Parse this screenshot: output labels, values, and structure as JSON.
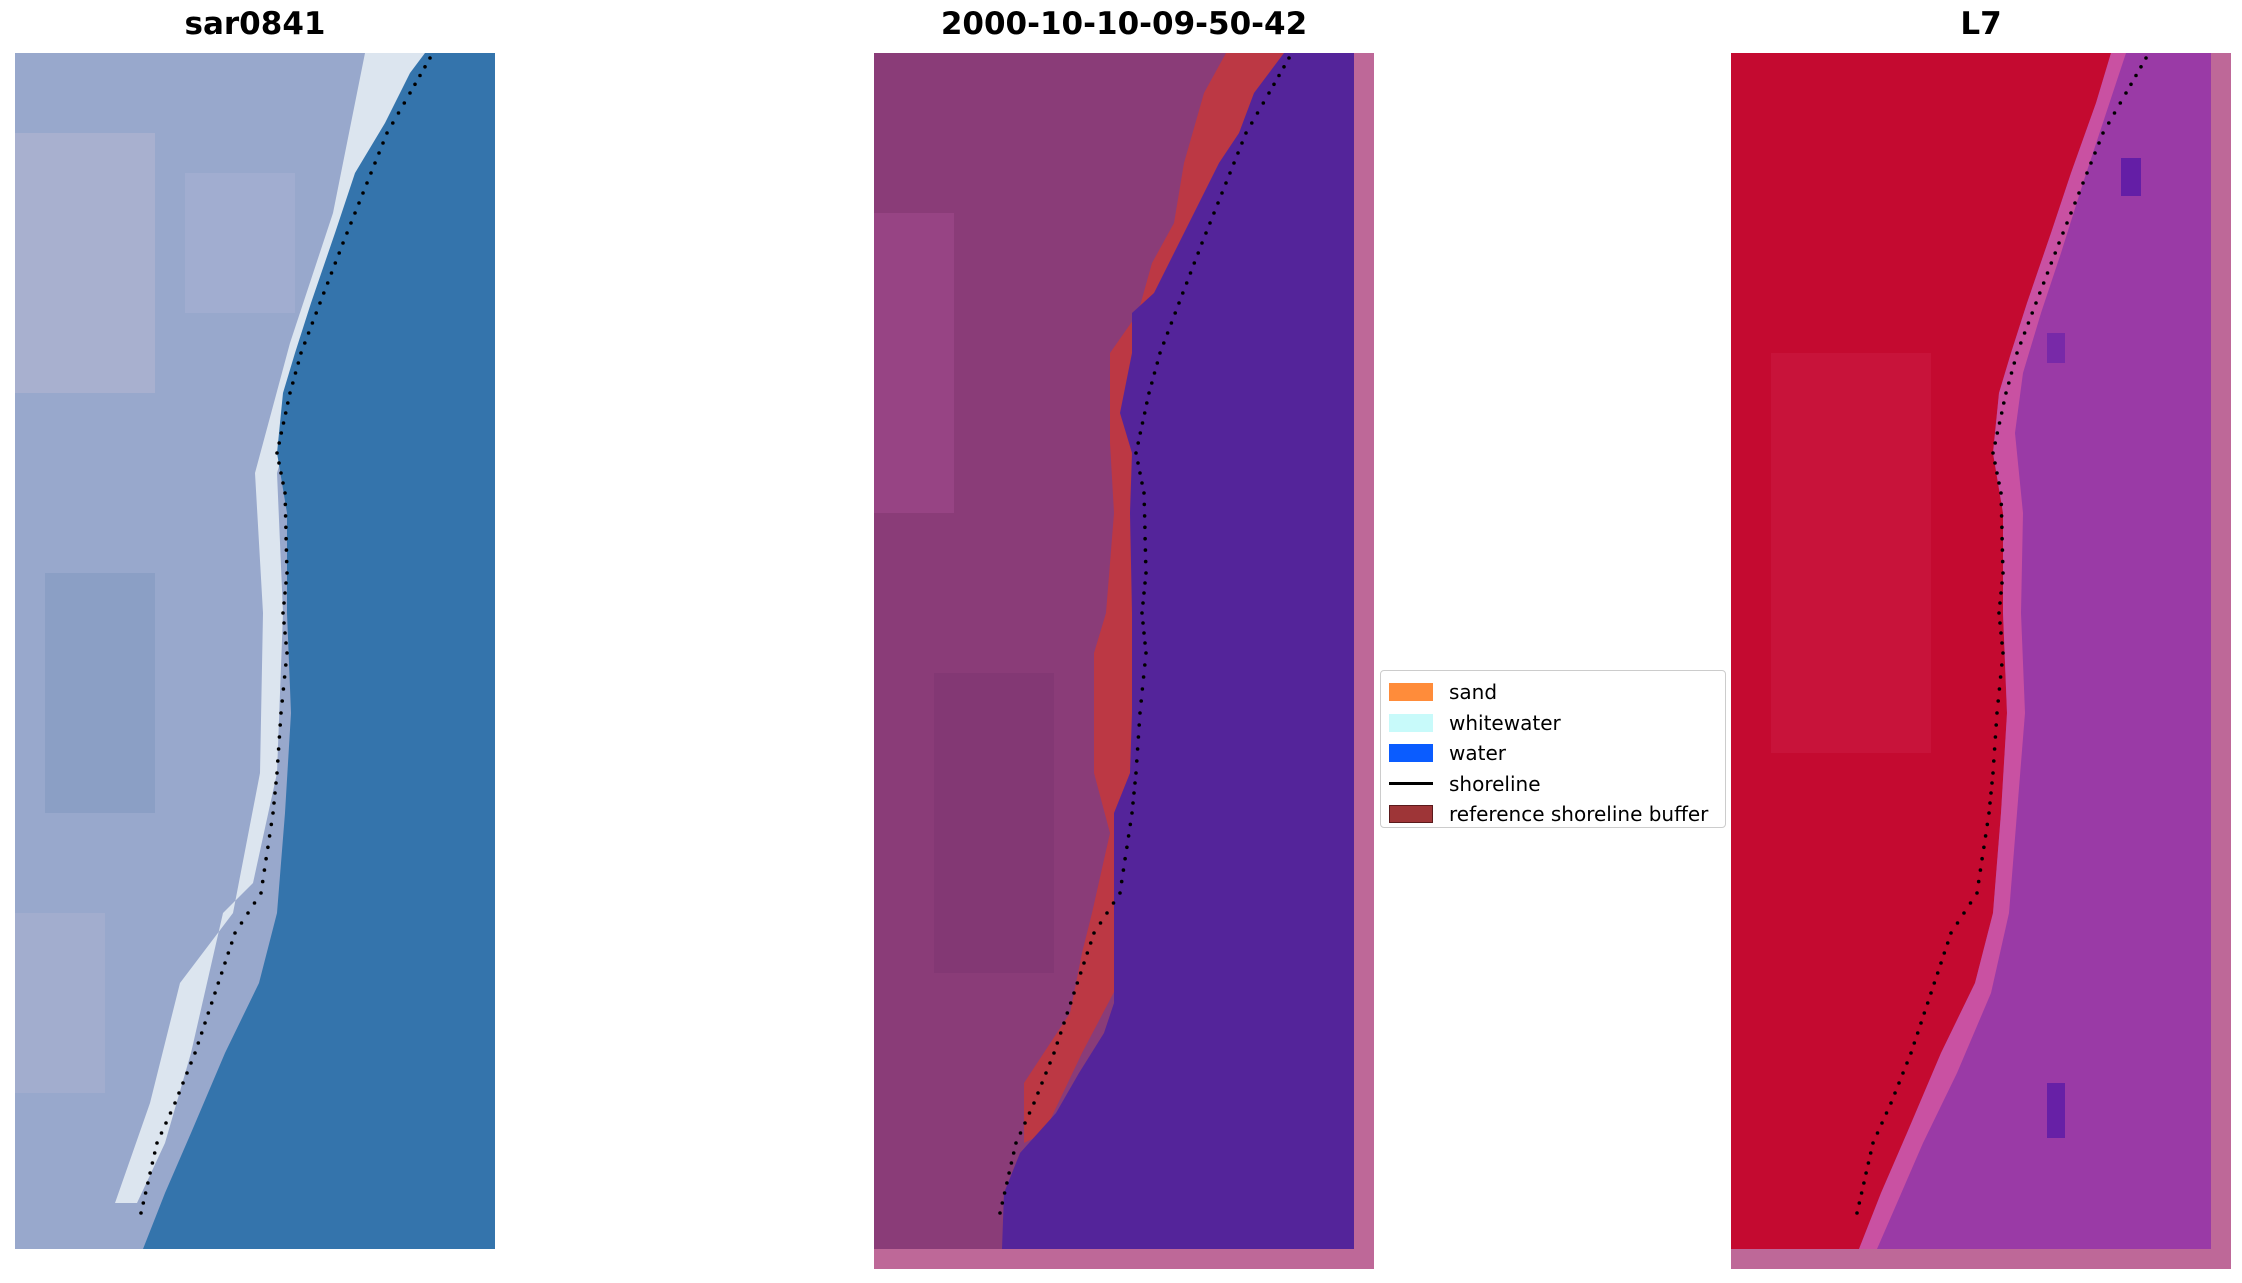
{
  "panels": {
    "rgb": {
      "title": "sar0841"
    },
    "classified": {
      "title": "2000-10-10-09-50-42"
    },
    "index": {
      "title": "L7"
    }
  },
  "legend": {
    "items": [
      {
        "label": "sand",
        "kind": "patch",
        "color": "#ff8c3a"
      },
      {
        "label": "whitewater",
        "kind": "patch",
        "color": "#c8fafa"
      },
      {
        "label": "water",
        "kind": "patch",
        "color": "#0a5cff"
      },
      {
        "label": "shoreline",
        "kind": "line",
        "color": "#000000"
      },
      {
        "label": "reference shoreline buffer",
        "kind": "patch",
        "color": "#9e3537",
        "edge": "#5a1a1c"
      }
    ]
  },
  "colors": {
    "land_rgb": "#98a8cc",
    "sea_rgb": "#3474ac",
    "whitewater_rgb": "#e8f0f4",
    "land_classified": "#8a3c78",
    "water_classified": "#54249a",
    "buffer_classified": "#bc3844",
    "border_classified": "#be6898",
    "land_index": "#c40a30",
    "sea_index": "#9a3aa6",
    "border_index": "#be6898",
    "shoreline_dots": "#000000"
  }
}
